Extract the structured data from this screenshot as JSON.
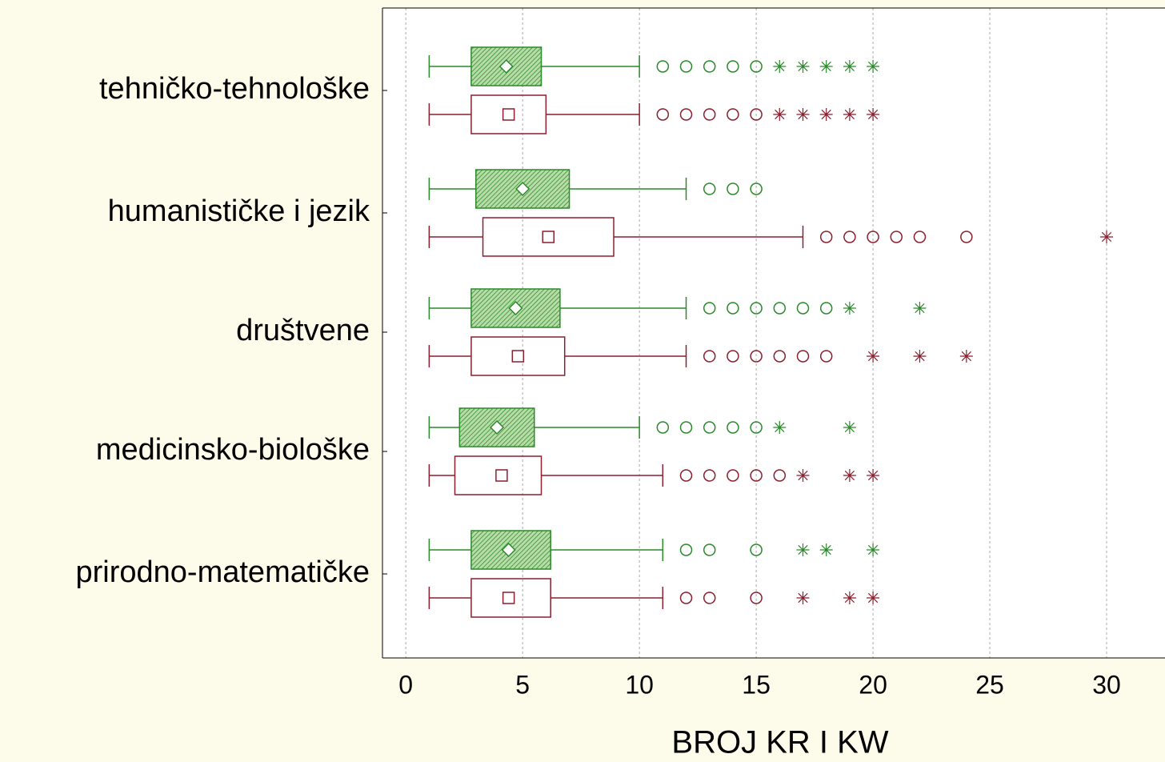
{
  "chart_data": {
    "type": "box",
    "orientation": "horizontal",
    "x_label": "BROJ KR I KW",
    "categories": [
      "tehničko-tehnološke",
      "humanističke i jezik",
      "društvene",
      "medicinsko-biološke",
      "prirodno-matematičke"
    ],
    "xlim": [
      -1,
      32.5
    ],
    "xticks": [
      0,
      5,
      10,
      15,
      20,
      25,
      30
    ],
    "grid": true,
    "series": [
      {
        "color": "#2a8a2a",
        "fill": "hatch",
        "marker": "diamond",
        "whisker_low": [
          1,
          1,
          1,
          1,
          1
        ],
        "q1": [
          2.8,
          3.0,
          2.8,
          2.3,
          2.8
        ],
        "median": [
          4.3,
          5.0,
          4.7,
          3.9,
          4.4
        ],
        "q3": [
          5.8,
          7.0,
          6.6,
          5.5,
          6.2
        ],
        "whisker_high": [
          10,
          12,
          12,
          10,
          11
        ],
        "outliers": [
          [
            11,
            12,
            13,
            14,
            15
          ],
          [
            13,
            14,
            15
          ],
          [
            13,
            14,
            15,
            16,
            17,
            18
          ],
          [
            11,
            12,
            13,
            14,
            15
          ],
          [
            12,
            13,
            15
          ]
        ],
        "extremes": [
          [
            16,
            17,
            18,
            19,
            20
          ],
          [],
          [
            19,
            22
          ],
          [
            16,
            19
          ],
          [
            17,
            18,
            20
          ]
        ]
      },
      {
        "color": "#8b1f2e",
        "fill": "none",
        "marker": "square",
        "whisker_low": [
          1,
          1,
          1,
          1,
          1
        ],
        "q1": [
          2.8,
          3.3,
          2.8,
          2.1,
          2.8
        ],
        "median": [
          4.4,
          6.1,
          4.8,
          4.1,
          4.4
        ],
        "q3": [
          6.0,
          8.9,
          6.8,
          5.8,
          6.2
        ],
        "whisker_high": [
          10,
          17,
          12,
          11,
          11
        ],
        "outliers": [
          [
            11,
            12,
            13,
            14,
            15
          ],
          [
            18,
            19,
            20,
            21,
            22,
            24
          ],
          [
            13,
            14,
            15,
            16,
            17,
            18
          ],
          [
            12,
            13,
            14,
            15,
            16
          ],
          [
            12,
            13,
            15
          ]
        ],
        "extremes": [
          [
            16,
            17,
            18,
            19,
            20
          ],
          [
            30
          ],
          [
            20,
            22,
            24
          ],
          [
            17,
            19,
            20
          ],
          [
            17,
            19,
            20
          ]
        ]
      }
    ]
  }
}
